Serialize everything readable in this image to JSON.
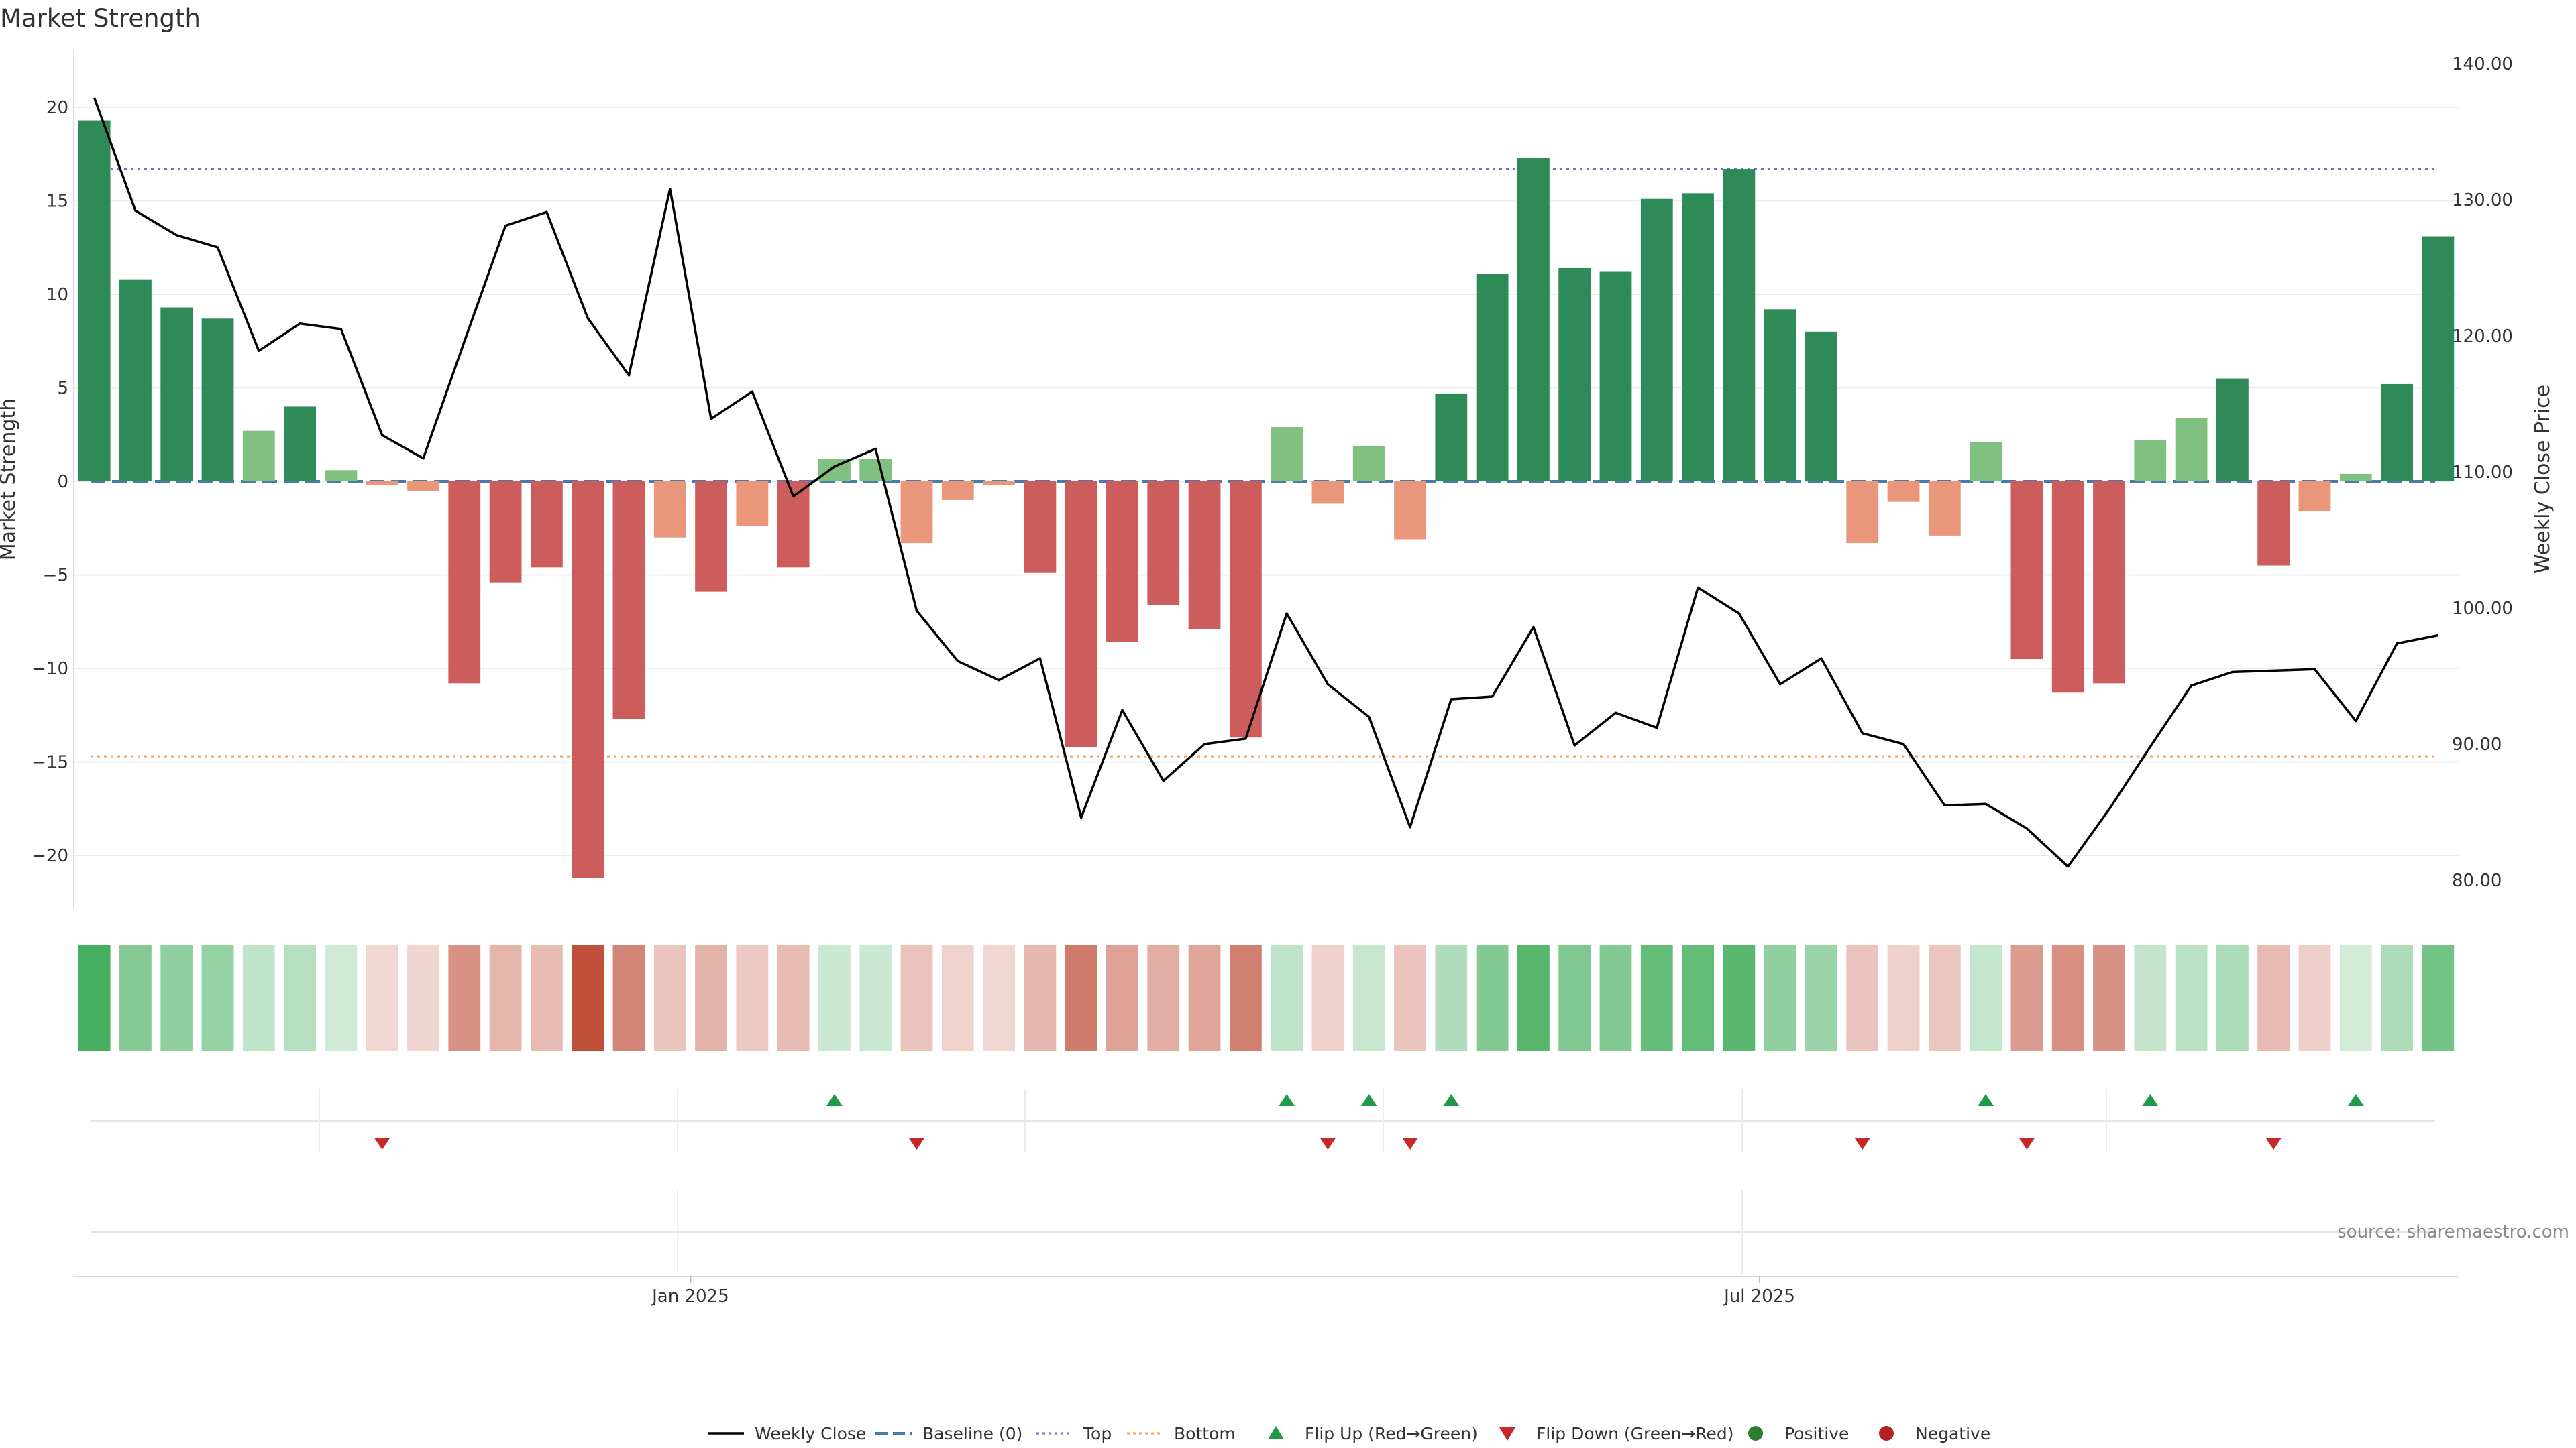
{
  "chart_data": {
    "type": "bar",
    "title": "Market Strength",
    "ylabel": "Market Strength",
    "y2label": "Weekly Close Price",
    "source": "source: sharemaestro.com",
    "ylim": [
      -23,
      23
    ],
    "y2lim": [
      78,
      140
    ],
    "y_ticks": [
      20,
      15,
      10,
      5,
      0,
      -5,
      -10,
      -15,
      -20
    ],
    "y_tick_labels": [
      "20",
      "15",
      "10",
      "5",
      "0",
      "−5",
      "−10",
      "−15",
      "−20"
    ],
    "y2_ticks": [
      140,
      130,
      120,
      110,
      100,
      90,
      80
    ],
    "y2_tick_labels": [
      "140.00",
      "130.00",
      "120.00",
      "110.00",
      "100.00",
      "90.00",
      "80.00"
    ],
    "x_ticks": [
      {
        "index": 14.5,
        "label": "Jan 2025"
      },
      {
        "index": 40.5,
        "label": "Jul 2025"
      }
    ],
    "top_level": 16.7,
    "bottom_level": -14.7,
    "baseline": 0,
    "market_strength": [
      19.3,
      10.8,
      9.3,
      8.7,
      2.7,
      4.0,
      0.6,
      -0.2,
      -0.5,
      -10.8,
      -5.4,
      -4.6,
      -21.2,
      -12.7,
      -3.0,
      -5.9,
      -2.4,
      -4.6,
      1.2,
      1.2,
      -3.3,
      -1.0,
      -0.2,
      -4.9,
      -14.2,
      -8.6,
      -6.6,
      -7.9,
      -13.7,
      2.9,
      -1.2,
      1.9,
      -3.1,
      4.7,
      11.1,
      17.3,
      11.4,
      11.2,
      15.1,
      15.4,
      16.7,
      9.2,
      8.0,
      -3.3,
      -1.1,
      -2.9,
      2.1,
      -9.5,
      -11.3,
      -10.8,
      2.2,
      3.4,
      5.5,
      -4.5,
      -1.6,
      0.4,
      5.2,
      13.1
    ],
    "weekly_close": [
      137.5,
      129.2,
      127.4,
      126.5,
      118.9,
      120.9,
      120.5,
      112.7,
      111.0,
      119.6,
      128.1,
      129.1,
      121.3,
      117.1,
      130.8,
      113.9,
      115.9,
      108.2,
      110.4,
      111.7,
      99.8,
      96.1,
      94.7,
      96.3,
      84.6,
      92.5,
      87.3,
      90.0,
      90.4,
      99.6,
      94.4,
      92.0,
      83.9,
      93.3,
      93.5,
      98.6,
      89.9,
      92.3,
      91.2,
      101.5,
      99.6,
      94.4,
      96.3,
      90.8,
      90.0,
      85.5,
      85.6,
      83.8,
      81.0,
      85.2,
      89.8,
      94.3,
      95.3,
      95.4,
      95.5,
      91.7,
      97.4,
      98.0
    ],
    "flip_up": [
      18,
      29,
      31,
      33,
      46,
      50,
      55
    ],
    "flip_down": [
      7,
      20,
      30,
      32,
      43,
      47,
      53
    ],
    "colors": {
      "strong_positive": "#2e8b57",
      "weak_positive": "#80c080",
      "strong_negative": "#cd5c5c",
      "weak_negative": "#e9967a",
      "price_line": "#000000",
      "baseline": "#4a7aa8",
      "top_line": "#7b68c8",
      "bottom_line": "#f4a460",
      "flip_up": "#1e9a4a",
      "flip_down": "#c62828",
      "positive_marker": "#2e7d32",
      "negative_marker": "#b22222"
    },
    "legend": [
      {
        "label": "Weekly Close",
        "kind": "line"
      },
      {
        "label": "Baseline (0)",
        "kind": "dash"
      },
      {
        "label": "Top",
        "kind": "dot-top"
      },
      {
        "label": "Bottom",
        "kind": "dot-bottom"
      },
      {
        "label": "Flip Up (Red→Green)",
        "kind": "tri-up"
      },
      {
        "label": "Flip Down (Green→Red)",
        "kind": "tri-down"
      },
      {
        "label": "Positive",
        "kind": "circle-pos"
      },
      {
        "label": "Negative",
        "kind": "circle-neg"
      }
    ],
    "legend_position": "bottom",
    "grid": true
  }
}
